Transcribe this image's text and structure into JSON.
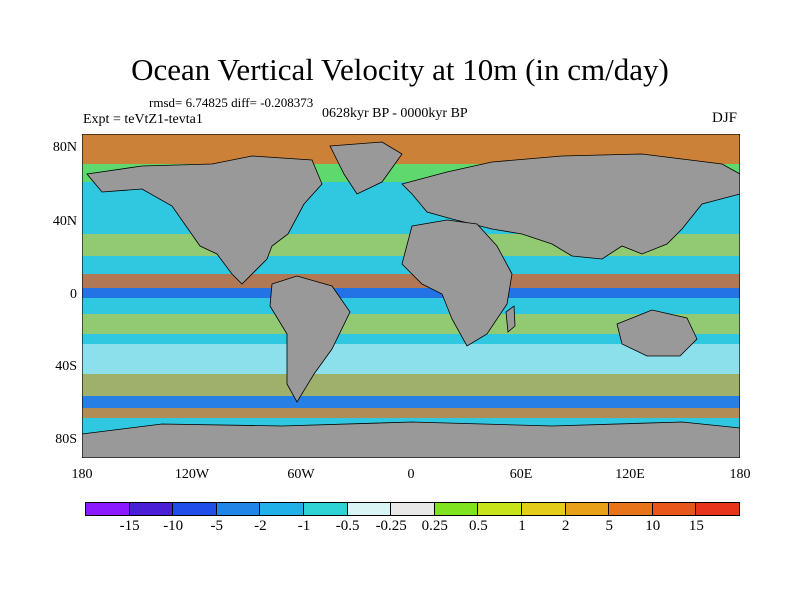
{
  "title": "Ocean Vertical Velocity at 10m (in cm/day)",
  "stats_line": "rmsd= 6.74825  diff= -0.208373",
  "period": "0628kyr BP - 0000kyr BP",
  "experiment": "Expt = teVtZ1-tevta1",
  "season": "DJF",
  "map": {
    "projection": "cylindrical equidistant",
    "lat_range": [
      -90,
      90
    ],
    "lon_range": [
      -180,
      180
    ],
    "land_color": "#999999",
    "lat_ticks": [
      {
        "label": "80N"
      },
      {
        "label": "40N"
      },
      {
        "label": "0"
      },
      {
        "label": "40S"
      },
      {
        "label": "80S"
      }
    ],
    "lon_ticks": [
      {
        "label": "180"
      },
      {
        "label": "120W"
      },
      {
        "label": "60W"
      },
      {
        "label": "0"
      },
      {
        "label": "60E"
      },
      {
        "label": "120E"
      },
      {
        "label": "180"
      }
    ]
  },
  "colorbar": {
    "colors": [
      "#8c1aff",
      "#4b1fd6",
      "#1f4fe8",
      "#1f86e8",
      "#22b0e8",
      "#2fd3d6",
      "#d9f4f4",
      "#e8e8e8",
      "#7fe31f",
      "#c7e31a",
      "#e3cc1a",
      "#e8a019",
      "#e8741a",
      "#e8561a",
      "#e8341a"
    ],
    "labels": [
      "-15",
      "-10",
      "-5",
      "-2",
      "-1",
      "-0.5",
      "-0.25",
      "0.25",
      "0.5",
      "1",
      "2",
      "5",
      "10",
      "15"
    ]
  }
}
